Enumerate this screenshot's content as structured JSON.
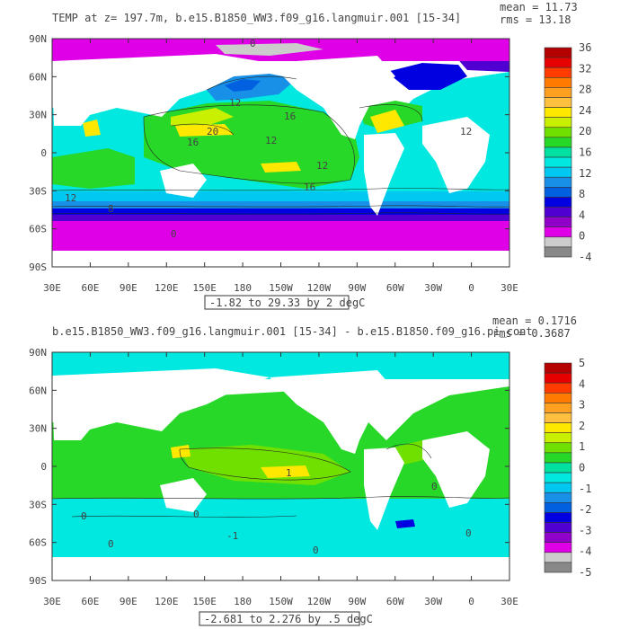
{
  "panels": [
    {
      "title": "TEMP at z= 197.7m, b.e15.B1850_WW3.f09_g16.langmuir.001 [15-34]",
      "stats": {
        "mean": "mean = 11.73",
        "rms": "rms = 13.18"
      },
      "lat_ticks": [
        "90N",
        "60N",
        "30N",
        "0",
        "30S",
        "60S",
        "90S"
      ],
      "lon_ticks": [
        "30E",
        "60E",
        "90E",
        "120E",
        "150E",
        "180",
        "150W",
        "120W",
        "90W",
        "60W",
        "30W",
        "0",
        "30E"
      ],
      "range_label": "-1.82 to 29.33 by 2 degC",
      "colorbar": {
        "labels": [
          "36",
          "32",
          "28",
          "24",
          "20",
          "16",
          "12",
          "8",
          "4",
          "0",
          "-4"
        ],
        "colors": [
          "#b40000",
          "#e60000",
          "#ff3b00",
          "#ff7a00",
          "#ffa020",
          "#ffc040",
          "#ffe800",
          "#c8f000",
          "#70e000",
          "#28d828",
          "#00e0a0",
          "#00e8e0",
          "#00c8f0",
          "#1890e8",
          "#0060e0",
          "#0000e0",
          "#5000d0",
          "#9000c8",
          "#e000e8",
          "#cccccc",
          "#888888"
        ]
      },
      "contour_labels": [
        "16",
        "12",
        "20",
        "16",
        "12",
        "12",
        "16",
        "12",
        "8",
        "0",
        "0",
        "12"
      ]
    },
    {
      "title": "b.e15.B1850_WW3.f09_g16.langmuir.001 [15-34] - b.e15.B1850.f09_g16.pi_cont",
      "stats": {
        "mean": "mean = 0.1716",
        "rms": "rms = 0.3687"
      },
      "lat_ticks": [
        "90N",
        "60N",
        "30N",
        "0",
        "30S",
        "60S",
        "90S"
      ],
      "lon_ticks": [
        "30E",
        "60E",
        "90E",
        "120E",
        "150E",
        "180",
        "150W",
        "120W",
        "90W",
        "60W",
        "30W",
        "0",
        "30E"
      ],
      "range_label": "-2.681 to 2.276 by .5 degC",
      "colorbar": {
        "labels": [
          "5",
          "4",
          "3",
          "2",
          "1",
          "0",
          "-1",
          "-2",
          "-3",
          "-4",
          "-5"
        ],
        "colors": [
          "#b40000",
          "#e60000",
          "#ff3b00",
          "#ff7a00",
          "#ffa020",
          "#ffc040",
          "#ffe800",
          "#c8f000",
          "#70e000",
          "#28d828",
          "#00e0a0",
          "#00e8e0",
          "#00c8f0",
          "#1890e8",
          "#0060e0",
          "#0000e0",
          "#5000d0",
          "#9000c8",
          "#e000e8",
          "#cccccc",
          "#888888"
        ]
      },
      "contour_labels": [
        "1",
        "0",
        "0",
        "0",
        "0",
        "0",
        "0",
        "-1"
      ]
    }
  ]
}
